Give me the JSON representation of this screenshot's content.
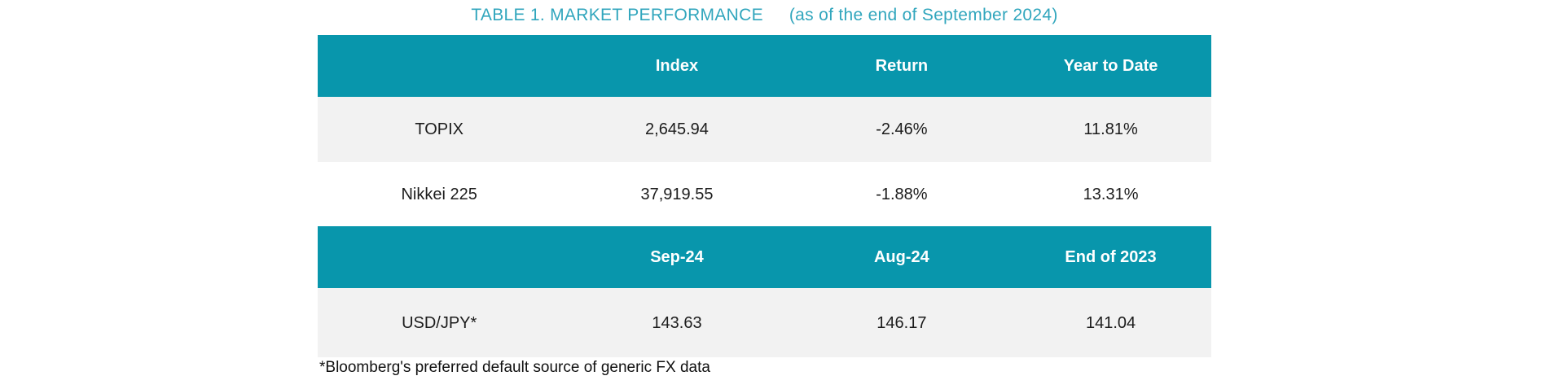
{
  "title": {
    "main": "TABLE 1. MARKET PERFORMANCE",
    "suffix": "(as of the end of September 2024)"
  },
  "table": {
    "sections": [
      {
        "header": [
          "",
          "Index",
          "Return",
          "Year to Date"
        ],
        "rows": [
          {
            "label": "TOPIX",
            "values": [
              "2,645.94",
              "-2.46%",
              "11.81%"
            ]
          },
          {
            "label": "Nikkei 225",
            "values": [
              "37,919.55",
              "-1.88%",
              "13.31%"
            ]
          }
        ]
      },
      {
        "header": [
          "",
          "Sep-24",
          "Aug-24",
          "End of 2023"
        ],
        "rows": [
          {
            "label": "USD/JPY*",
            "values": [
              "143.63",
              "146.17",
              "141.04"
            ]
          }
        ]
      }
    ]
  },
  "footnote": "*Bloomberg's preferred default source of generic FX data",
  "colors": {
    "header_bg": "#0896ac",
    "header_text": "#ffffff",
    "title_text": "#31a6bd",
    "row_alt_bg": "#f2f2f2",
    "row_bg": "#ffffff",
    "body_text": "#1c1c1c"
  },
  "chart_data": {
    "type": "table",
    "title": "TABLE 1. MARKET PERFORMANCE (as of the end of September 2024)",
    "sections": [
      {
        "columns": [
          "",
          "Index",
          "Return",
          "Year to Date"
        ],
        "rows": [
          [
            "TOPIX",
            "2,645.94",
            "-2.46%",
            "11.81%"
          ],
          [
            "Nikkei 225",
            "37,919.55",
            "-1.88%",
            "13.31%"
          ]
        ]
      },
      {
        "columns": [
          "",
          "Sep-24",
          "Aug-24",
          "End of 2023"
        ],
        "rows": [
          [
            "USD/JPY*",
            "143.63",
            "146.17",
            "141.04"
          ]
        ]
      }
    ],
    "footnote": "*Bloomberg's preferred default source of generic FX data"
  }
}
